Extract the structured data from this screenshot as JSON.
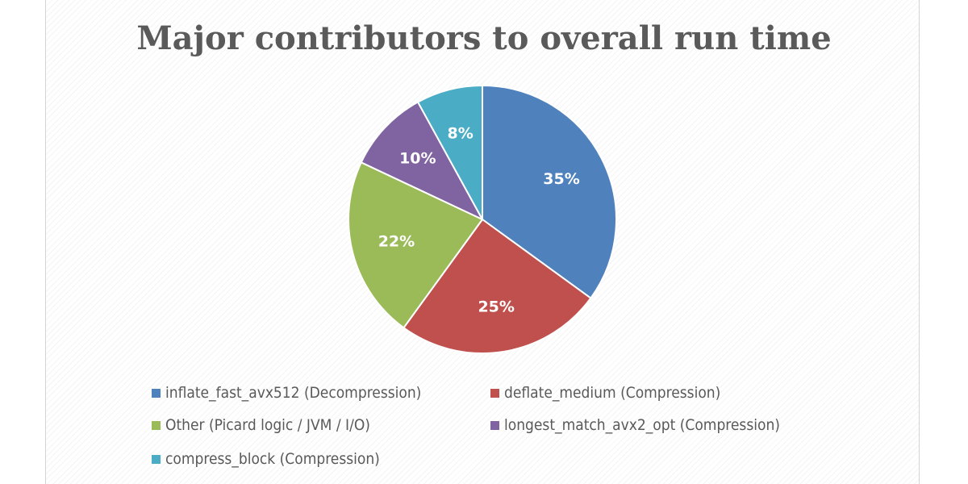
{
  "chart_data": {
    "type": "pie",
    "title": "Major contributors to overall run time",
    "slices": [
      {
        "label": "inflate_fast_avx512 (Decompression)",
        "value": 35,
        "display": "35%",
        "color": "#4f81bd"
      },
      {
        "label": "deflate_medium (Compression)",
        "value": 25,
        "display": "25%",
        "color": "#c0504d"
      },
      {
        "label": "Other (Picard logic / JVM / I/O)",
        "value": 22,
        "display": "22%",
        "color": "#9bbb59"
      },
      {
        "label": "longest_match_avx2_opt (Compression)",
        "value": 10,
        "display": "10%",
        "color": "#8064a2"
      },
      {
        "label": "compress_block (Compression)",
        "value": 8,
        "display": "8%",
        "color": "#4bacc6"
      }
    ],
    "legend_position": "bottom",
    "start_angle": "12 o'clock",
    "direction": "clockwise"
  }
}
